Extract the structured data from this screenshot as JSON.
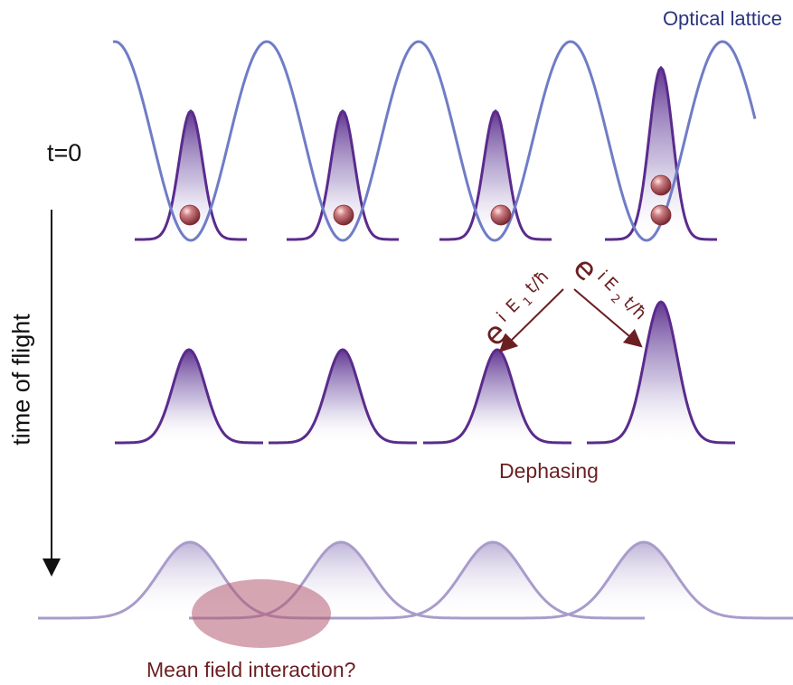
{
  "labels": {
    "optical_lattice": "Optical lattice",
    "t0": "t=0",
    "time_of_flight": "time of flight",
    "dephasing": "Dephasing",
    "mean_field": "Mean field interaction?",
    "phase_left": {
      "base": "e",
      "i": "i",
      "E": "E",
      "sub": "1",
      "rest": "t/ħ"
    },
    "phase_right": {
      "base": "e",
      "i": "i",
      "E": "E",
      "sub": "2",
      "rest": "t/ħ"
    }
  },
  "colors": {
    "lattice_line": "#6f7cc7",
    "wavepacket_line": "#5a2b8c",
    "wavepacket_fill_top": "#5a2b8c",
    "expanded_line": "#a99ccb",
    "atom": "#a3474c",
    "text_dark_red": "#6b1f22",
    "lattice_label": "#2b3480",
    "interaction_blob": "#b45b72"
  },
  "diagram": {
    "sites": [
      {
        "atoms": 1,
        "peak_height": "normal"
      },
      {
        "atoms": 1,
        "peak_height": "normal"
      },
      {
        "atoms": 1,
        "peak_height": "normal"
      },
      {
        "atoms": 2,
        "peak_height": "tall"
      }
    ],
    "stages": [
      "t=0 in optical lattice",
      "time of flight",
      "expanded and overlapping"
    ]
  }
}
